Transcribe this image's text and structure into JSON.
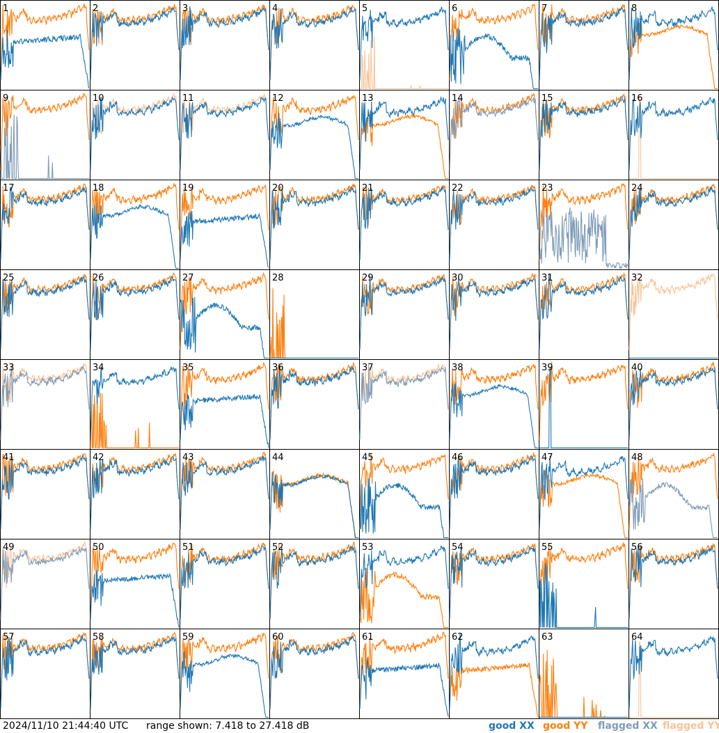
{
  "footer": {
    "timestamp": "2024/11/10 21:44:40 UTC",
    "range_text": "range shown: 7.418 to 27.418 dB"
  },
  "legend": [
    {
      "label": "good XX",
      "color": "#1f77b4"
    },
    {
      "label": "good YY",
      "color": "#ff7f0e"
    },
    {
      "label": "flagged XX",
      "color": "#7f9cb8"
    },
    {
      "label": "flagged YY",
      "color": "#f9c396"
    }
  ],
  "chart_data": {
    "type": "line",
    "layout": "small-multiples 8x8",
    "y_range_db": [
      7.418,
      27.418
    ],
    "series_names": [
      "good XX",
      "good YY",
      "flagged XX",
      "flagged YY"
    ],
    "panels": [
      {
        "id": "1",
        "xx": "good",
        "yy": "good",
        "xx_shape": "low_droop",
        "yy_shape": "standard"
      },
      {
        "id": "2",
        "xx": "good",
        "yy": "good",
        "xx_shape": "standard",
        "yy_shape": "standard"
      },
      {
        "id": "3",
        "xx": "good",
        "yy": "good",
        "xx_shape": "standard",
        "yy_shape": "standard"
      },
      {
        "id": "4",
        "xx": "good",
        "yy": "good",
        "xx_shape": "standard",
        "yy_shape": "standard"
      },
      {
        "id": "5",
        "xx": "good",
        "yy": "flagged",
        "xx_shape": "standard",
        "yy_shape": "spikes"
      },
      {
        "id": "6",
        "xx": "good",
        "yy": "good",
        "xx_shape": "hump_droop",
        "yy_shape": "standard"
      },
      {
        "id": "7",
        "xx": "good",
        "yy": "good",
        "xx_shape": "standard",
        "yy_shape": "standard"
      },
      {
        "id": "8",
        "xx": "good",
        "yy": "good",
        "xx_shape": "standard",
        "yy_shape": "droop"
      },
      {
        "id": "9",
        "xx": "flagged",
        "yy": "good",
        "xx_shape": "spikes",
        "yy_shape": "standard"
      },
      {
        "id": "10",
        "xx": "good",
        "yy": "flagged",
        "xx_shape": "standard",
        "yy_shape": "standard"
      },
      {
        "id": "11",
        "xx": "good",
        "yy": "flagged",
        "xx_shape": "standard",
        "yy_shape": "standard"
      },
      {
        "id": "12",
        "xx": "good",
        "yy": "good",
        "xx_shape": "droop",
        "yy_shape": "standard"
      },
      {
        "id": "13",
        "xx": "good",
        "yy": "good",
        "xx_shape": "standard",
        "yy_shape": "droop"
      },
      {
        "id": "14",
        "xx": "flagged",
        "yy": "good",
        "xx_shape": "standard",
        "yy_shape": "standard"
      },
      {
        "id": "15",
        "xx": "good",
        "yy": "good",
        "xx_shape": "standard",
        "yy_shape": "standard"
      },
      {
        "id": "16",
        "xx": "good",
        "yy": "flagged",
        "xx_shape": "standard",
        "yy_shape": "spike_single"
      },
      {
        "id": "17",
        "xx": "good",
        "yy": "good",
        "xx_shape": "standard",
        "yy_shape": "standard"
      },
      {
        "id": "18",
        "xx": "good",
        "yy": "good",
        "xx_shape": "droop",
        "yy_shape": "standard"
      },
      {
        "id": "19",
        "xx": "good",
        "yy": "good",
        "xx_shape": "low_droop",
        "yy_shape": "standard"
      },
      {
        "id": "20",
        "xx": "good",
        "yy": "good",
        "xx_shape": "standard",
        "yy_shape": "standard"
      },
      {
        "id": "21",
        "xx": "good",
        "yy": "good",
        "xx_shape": "standard",
        "yy_shape": "standard"
      },
      {
        "id": "22",
        "xx": "good",
        "yy": "good",
        "xx_shape": "standard",
        "yy_shape": "standard"
      },
      {
        "id": "23",
        "xx": "flagged",
        "yy": "good",
        "xx_shape": "noise",
        "yy_shape": "standard"
      },
      {
        "id": "24",
        "xx": "good",
        "yy": "good",
        "xx_shape": "standard",
        "yy_shape": "standard"
      },
      {
        "id": "25",
        "xx": "good",
        "yy": "good",
        "xx_shape": "standard",
        "yy_shape": "standard"
      },
      {
        "id": "26",
        "xx": "good",
        "yy": "good",
        "xx_shape": "standard",
        "yy_shape": "standard"
      },
      {
        "id": "27",
        "xx": "good",
        "yy": "good",
        "xx_shape": "hump_droop",
        "yy_shape": "standard"
      },
      {
        "id": "28",
        "xx": "good",
        "yy": "good",
        "xx_shape": "flat_bottom",
        "yy_shape": "spikes"
      },
      {
        "id": "29",
        "xx": "good",
        "yy": "good",
        "xx_shape": "standard",
        "yy_shape": "standard"
      },
      {
        "id": "30",
        "xx": "good",
        "yy": "good",
        "xx_shape": "standard",
        "yy_shape": "standard"
      },
      {
        "id": "31",
        "xx": "good",
        "yy": "good",
        "xx_shape": "standard",
        "yy_shape": "standard"
      },
      {
        "id": "32",
        "xx": "good",
        "yy": "flagged",
        "xx_shape": "flat_bottom",
        "yy_shape": "standard"
      },
      {
        "id": "33",
        "xx": "flagged",
        "yy": "flagged",
        "xx_shape": "standard",
        "yy_shape": "standard"
      },
      {
        "id": "34",
        "xx": "good",
        "yy": "good",
        "xx_shape": "standard",
        "yy_shape": "spikes"
      },
      {
        "id": "35",
        "xx": "good",
        "yy": "good",
        "xx_shape": "low_droop",
        "yy_shape": "standard"
      },
      {
        "id": "36",
        "xx": "good",
        "yy": "good",
        "xx_shape": "standard",
        "yy_shape": "standard"
      },
      {
        "id": "37",
        "xx": "flagged",
        "yy": "flagged",
        "xx_shape": "standard",
        "yy_shape": "standard"
      },
      {
        "id": "38",
        "xx": "good",
        "yy": "good",
        "xx_shape": "droop",
        "yy_shape": "standard"
      },
      {
        "id": "39",
        "xx": "good",
        "yy": "good",
        "xx_shape": "spike_single",
        "yy_shape": "standard"
      },
      {
        "id": "40",
        "xx": "good",
        "yy": "good",
        "xx_shape": "standard",
        "yy_shape": "standard"
      },
      {
        "id": "41",
        "xx": "good",
        "yy": "good",
        "xx_shape": "standard",
        "yy_shape": "standard"
      },
      {
        "id": "42",
        "xx": "good",
        "yy": "good",
        "xx_shape": "standard",
        "yy_shape": "standard"
      },
      {
        "id": "43",
        "xx": "good",
        "yy": "good",
        "xx_shape": "standard",
        "yy_shape": "standard"
      },
      {
        "id": "44",
        "xx": "good",
        "yy": "good",
        "xx_shape": "droop",
        "yy_shape": "droop"
      },
      {
        "id": "45",
        "xx": "good",
        "yy": "good",
        "xx_shape": "hump_droop",
        "yy_shape": "standard"
      },
      {
        "id": "46",
        "xx": "good",
        "yy": "good",
        "xx_shape": "standard",
        "yy_shape": "standard"
      },
      {
        "id": "47",
        "xx": "good",
        "yy": "good",
        "xx_shape": "standard",
        "yy_shape": "droop"
      },
      {
        "id": "48",
        "xx": "flagged",
        "yy": "good",
        "xx_shape": "hump_droop",
        "yy_shape": "standard"
      },
      {
        "id": "49",
        "xx": "flagged",
        "yy": "flagged",
        "xx_shape": "standard",
        "yy_shape": "standard"
      },
      {
        "id": "50",
        "xx": "good",
        "yy": "good",
        "xx_shape": "low_droop",
        "yy_shape": "standard"
      },
      {
        "id": "51",
        "xx": "good",
        "yy": "good",
        "xx_shape": "standard",
        "yy_shape": "standard"
      },
      {
        "id": "52",
        "xx": "good",
        "yy": "good",
        "xx_shape": "standard",
        "yy_shape": "standard"
      },
      {
        "id": "53",
        "xx": "good",
        "yy": "good",
        "xx_shape": "standard",
        "yy_shape": "hump_droop"
      },
      {
        "id": "54",
        "xx": "good",
        "yy": "good",
        "xx_shape": "standard",
        "yy_shape": "standard"
      },
      {
        "id": "55",
        "xx": "good",
        "yy": "good",
        "xx_shape": "spikes",
        "yy_shape": "standard"
      },
      {
        "id": "56",
        "xx": "good",
        "yy": "good",
        "xx_shape": "standard",
        "yy_shape": "standard"
      },
      {
        "id": "57",
        "xx": "good",
        "yy": "good",
        "xx_shape": "standard",
        "yy_shape": "standard"
      },
      {
        "id": "58",
        "xx": "good",
        "yy": "good",
        "xx_shape": "standard",
        "yy_shape": "standard"
      },
      {
        "id": "59",
        "xx": "good",
        "yy": "good",
        "xx_shape": "droop",
        "yy_shape": "standard"
      },
      {
        "id": "60",
        "xx": "good",
        "yy": "good",
        "xx_shape": "standard",
        "yy_shape": "standard"
      },
      {
        "id": "61",
        "xx": "good",
        "yy": "good",
        "xx_shape": "low_droop",
        "yy_shape": "standard"
      },
      {
        "id": "62",
        "xx": "good",
        "yy": "good",
        "xx_shape": "standard",
        "yy_shape": "low_droop"
      },
      {
        "id": "63",
        "xx": "good",
        "yy": "good",
        "xx_shape": "flat_bottom",
        "yy_shape": "spikes"
      },
      {
        "id": "64",
        "xx": "good",
        "yy": "flagged",
        "xx_shape": "standard",
        "yy_shape": "spike_single"
      }
    ]
  }
}
